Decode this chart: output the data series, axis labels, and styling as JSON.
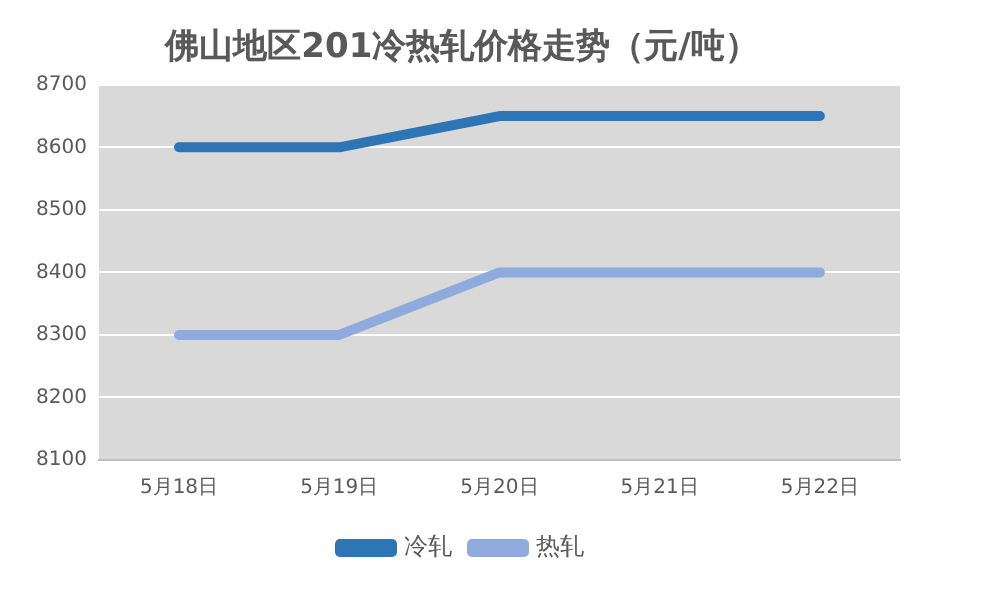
{
  "chart_data": {
    "type": "line",
    "title": "佛山地区201冷热轧价格走势（元/吨）",
    "categories": [
      "5月18日",
      "5月19日",
      "5月20日",
      "5月21日",
      "5月22日"
    ],
    "series": [
      {
        "name": "冷轧",
        "color": "#2e75b6",
        "values": [
          8600,
          8600,
          8650,
          8650,
          8650
        ]
      },
      {
        "name": "热轧",
        "color": "#8faadc",
        "values": [
          8300,
          8300,
          8400,
          8400,
          8400
        ]
      }
    ],
    "ylim": [
      8100,
      8700
    ],
    "yticks": [
      8100,
      8200,
      8300,
      8400,
      8500,
      8600,
      8700
    ],
    "grid": "y",
    "legend": "bottom",
    "marker": "none",
    "line_style": "solid"
  }
}
